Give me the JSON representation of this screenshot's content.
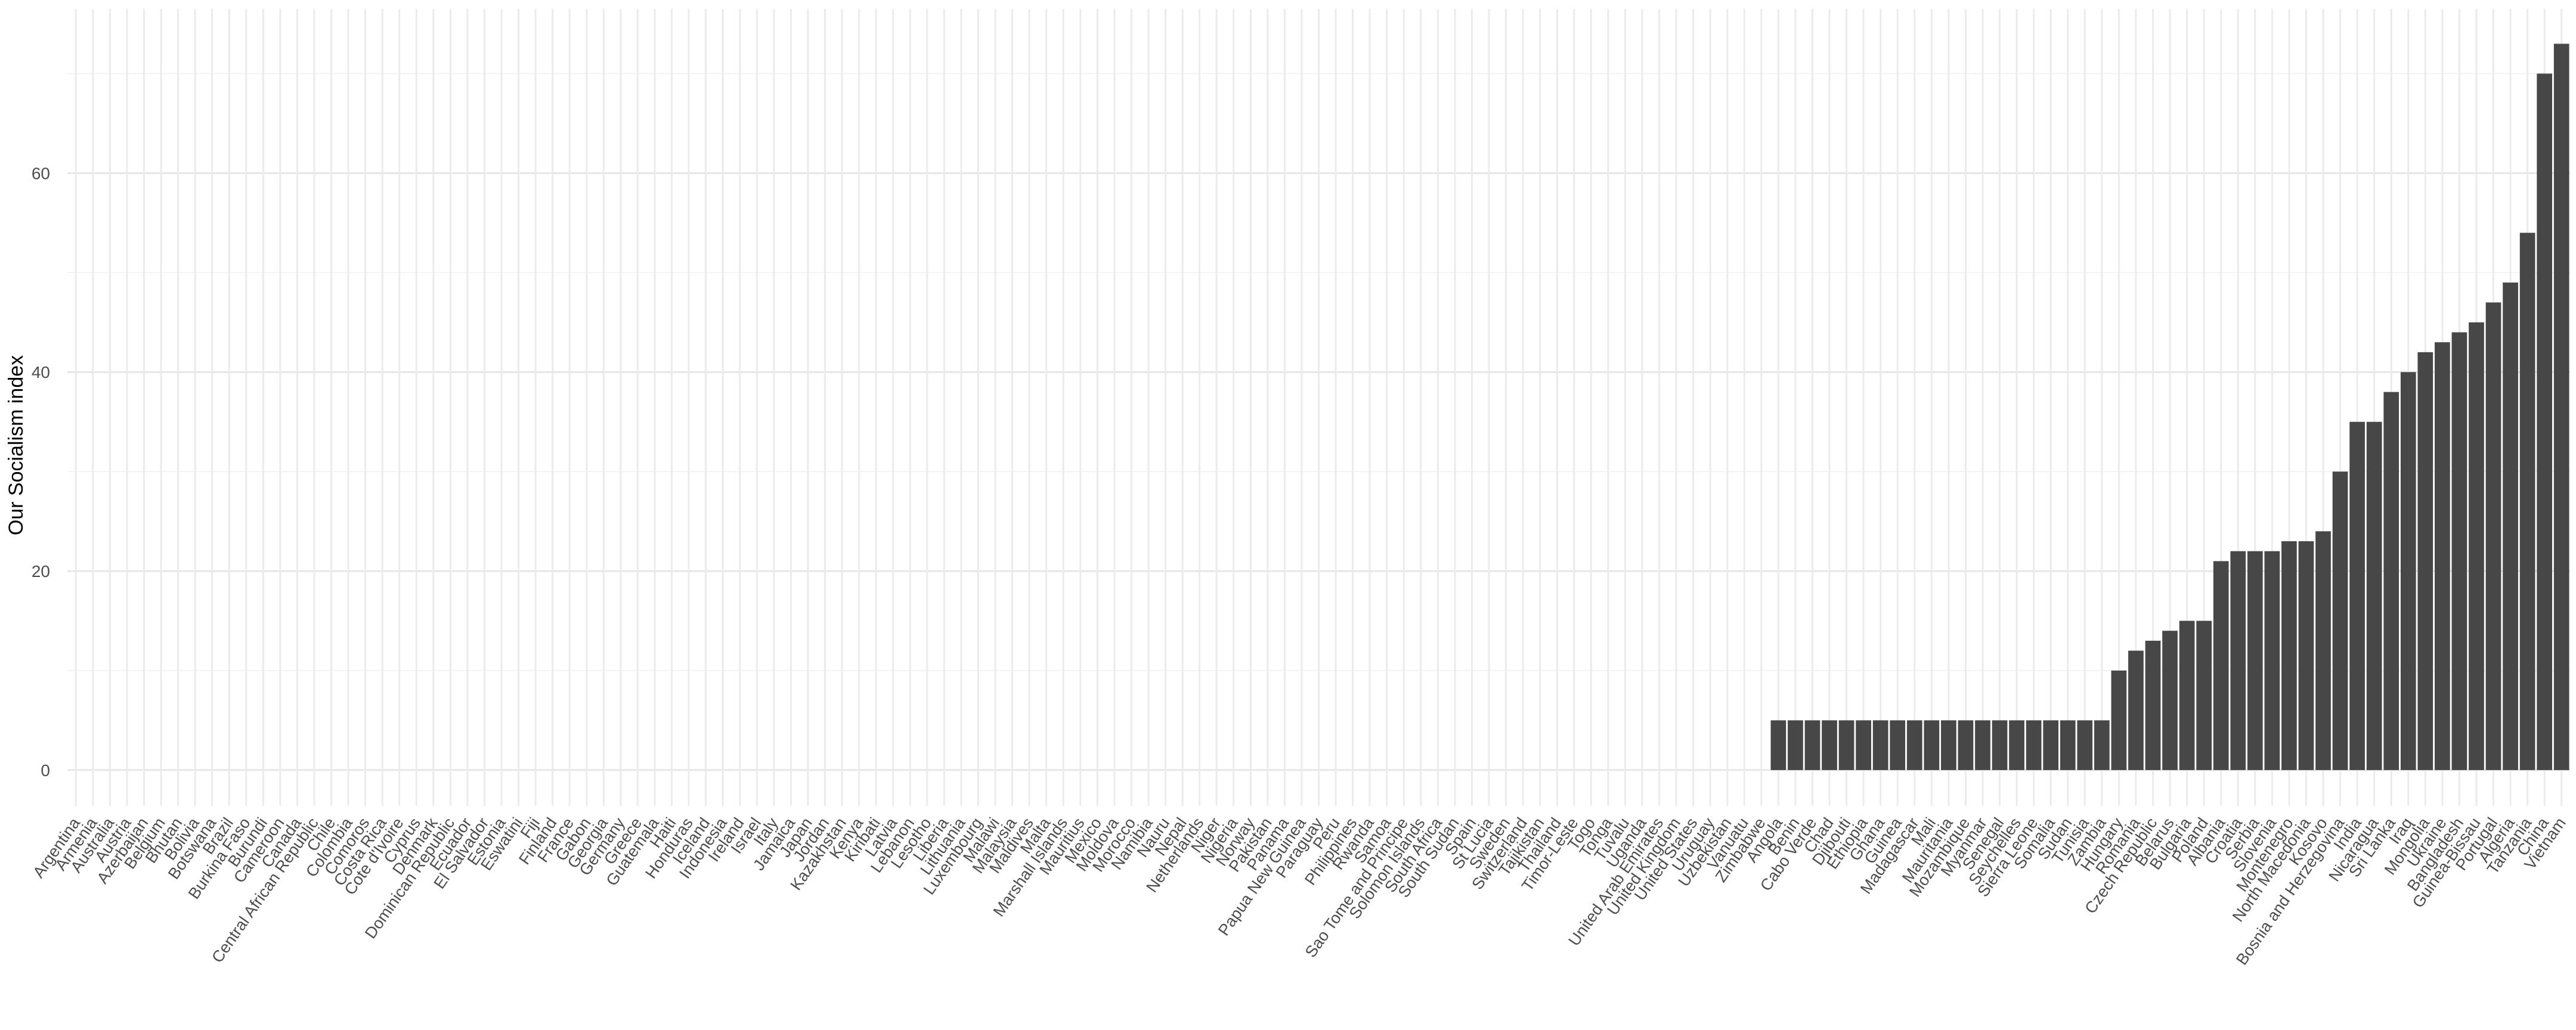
{
  "chart_data": {
    "type": "bar",
    "ylabel": "Our Socialism index",
    "xlabel": "",
    "title": "",
    "ylim": [
      -3.6,
      76.5
    ],
    "yticks": [
      0,
      20,
      40,
      60
    ],
    "grid": true,
    "bar_color": "#474747",
    "categories": [
      "Argentina",
      "Armenia",
      "Australia",
      "Austria",
      "Azerbaijan",
      "Belgium",
      "Bhutan",
      "Bolivia",
      "Botswana",
      "Brazil",
      "Burkina Faso",
      "Burundi",
      "Cameroon",
      "Canada",
      "Central African Republic",
      "Chile",
      "Colombia",
      "Comoros",
      "Costa Rica",
      "Cote d'Ivoire",
      "Cyprus",
      "Denmark",
      "Dominican Republic",
      "Ecuador",
      "El Salvador",
      "Estonia",
      "Eswatini",
      "Fiji",
      "Finland",
      "France",
      "Gabon",
      "Georgia",
      "Germany",
      "Greece",
      "Guatemala",
      "Haiti",
      "Honduras",
      "Iceland",
      "Indonesia",
      "Ireland",
      "Israel",
      "Italy",
      "Jamaica",
      "Japan",
      "Jordan",
      "Kazakhstan",
      "Kenya",
      "Kiribati",
      "Latvia",
      "Lebanon",
      "Lesotho",
      "Liberia",
      "Lithuania",
      "Luxembourg",
      "Malawi",
      "Malaysia",
      "Maldives",
      "Malta",
      "Marshall Islands",
      "Mauritius",
      "Mexico",
      "Moldova",
      "Morocco",
      "Namibia",
      "Nauru",
      "Nepal",
      "Netherlands",
      "Niger",
      "Nigeria",
      "Norway",
      "Pakistan",
      "Panama",
      "Papua New Guinea",
      "Paraguay",
      "Peru",
      "Philippines",
      "Rwanda",
      "Samoa",
      "Sao Tome and Principe",
      "Solomon Islands",
      "South Africa",
      "South Sudan",
      "Spain",
      "St Lucia",
      "Sweden",
      "Switzerland",
      "Tajikistan",
      "Thailand",
      "Timor-Leste",
      "Togo",
      "Tonga",
      "Tuvalu",
      "Uganda",
      "United Arab Emirates",
      "United Kingdom",
      "United States",
      "Uruguay",
      "Uzbekistan",
      "Vanuatu",
      "Zimbabwe",
      "Angola",
      "Benin",
      "Cabo Verde",
      "Chad",
      "Djibouti",
      "Ethiopia",
      "Ghana",
      "Guinea",
      "Madagascar",
      "Mali",
      "Mauritania",
      "Mozambique",
      "Myanmar",
      "Senegal",
      "Seychelles",
      "Sierra Leone",
      "Somalia",
      "Sudan",
      "Tunisia",
      "Zambia",
      "Hungary",
      "Romania",
      "Czech Republic",
      "Belarus",
      "Bulgaria",
      "Poland",
      "Albania",
      "Croatia",
      "Serbia",
      "Slovenia",
      "Montenegro",
      "North Macedonia",
      "Kosovo",
      "Bosnia and Herzegovina",
      "India",
      "Nicaragua",
      "Sri Lanka",
      "Iraq",
      "Mongolia",
      "Ukraine",
      "Bangladesh",
      "Guinea-Bissau",
      "Portugal",
      "Algeria",
      "Tanzania",
      "China",
      "Vietnam"
    ],
    "values": [
      0,
      0,
      0,
      0,
      0,
      0,
      0,
      0,
      0,
      0,
      0,
      0,
      0,
      0,
      0,
      0,
      0,
      0,
      0,
      0,
      0,
      0,
      0,
      0,
      0,
      0,
      0,
      0,
      0,
      0,
      0,
      0,
      0,
      0,
      0,
      0,
      0,
      0,
      0,
      0,
      0,
      0,
      0,
      0,
      0,
      0,
      0,
      0,
      0,
      0,
      0,
      0,
      0,
      0,
      0,
      0,
      0,
      0,
      0,
      0,
      0,
      0,
      0,
      0,
      0,
      0,
      0,
      0,
      0,
      0,
      0,
      0,
      0,
      0,
      0,
      0,
      0,
      0,
      0,
      0,
      0,
      0,
      0,
      0,
      0,
      0,
      0,
      0,
      0,
      0,
      0,
      0,
      0,
      0,
      0,
      0,
      0,
      0,
      0,
      0,
      5,
      5,
      5,
      5,
      5,
      5,
      5,
      5,
      5,
      5,
      5,
      5,
      5,
      5,
      5,
      5,
      5,
      5,
      5,
      5,
      10,
      12,
      13,
      14,
      15,
      15,
      21,
      22,
      22,
      22,
      23,
      23,
      24,
      30,
      35,
      35,
      38,
      40,
      42,
      43,
      44,
      45,
      47,
      49,
      54,
      70,
      73
    ]
  }
}
